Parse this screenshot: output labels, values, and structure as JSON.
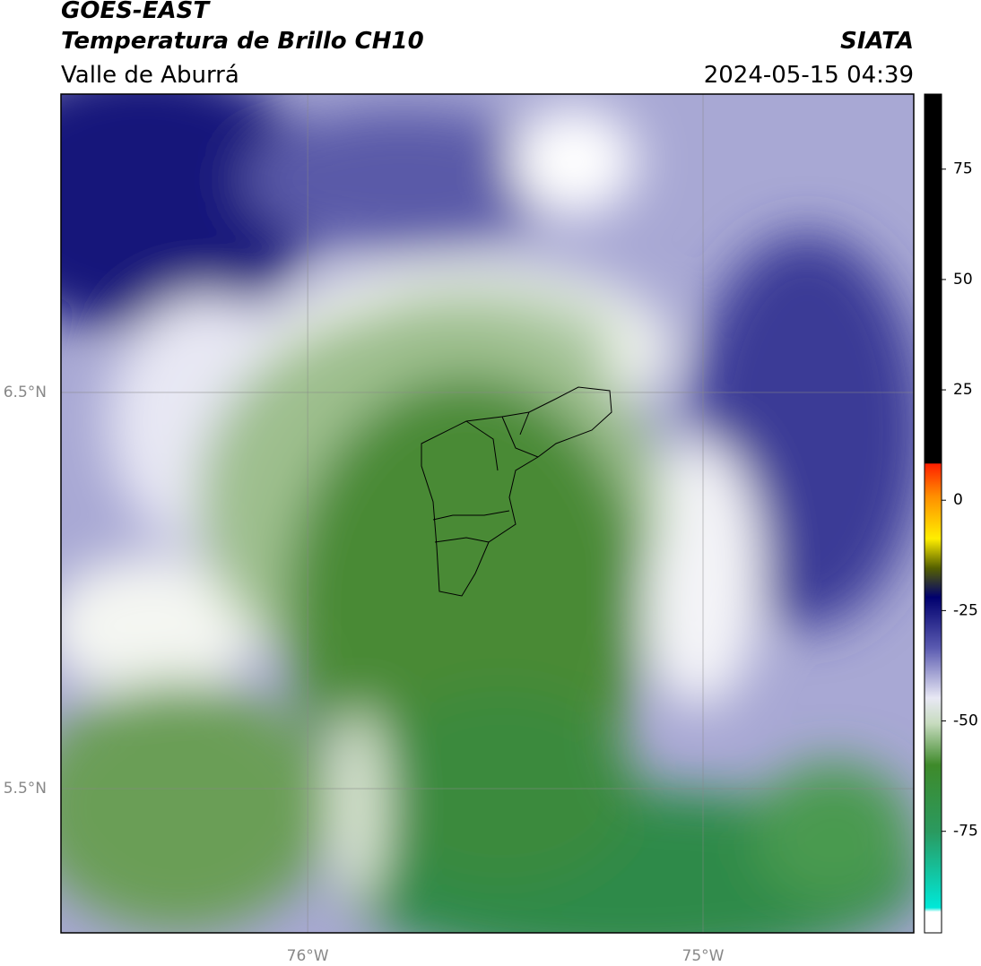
{
  "header": {
    "title": "GOES-EAST",
    "subtitle": "Temperatura de Brillo CH10",
    "agency": "SIATA",
    "region": "Valle de Aburrá",
    "datetime": "2024-05-15 04:39"
  },
  "map": {
    "xlim": [
      -76.624,
      -74.467
    ],
    "ylim": [
      5.136,
      7.253
    ],
    "xticks": [
      {
        "value": -76,
        "label": "76°W"
      },
      {
        "value": -75,
        "label": "75°W"
      }
    ],
    "yticks": [
      {
        "value": 6.5,
        "label": "6.5°N"
      },
      {
        "value": 5.5,
        "label": "5.5°N"
      }
    ],
    "grid": true
  },
  "colorbar": {
    "lim": [
      -98,
      92
    ],
    "ticks": [
      75,
      50,
      25,
      0,
      -25,
      -50,
      -75
    ]
  }
}
